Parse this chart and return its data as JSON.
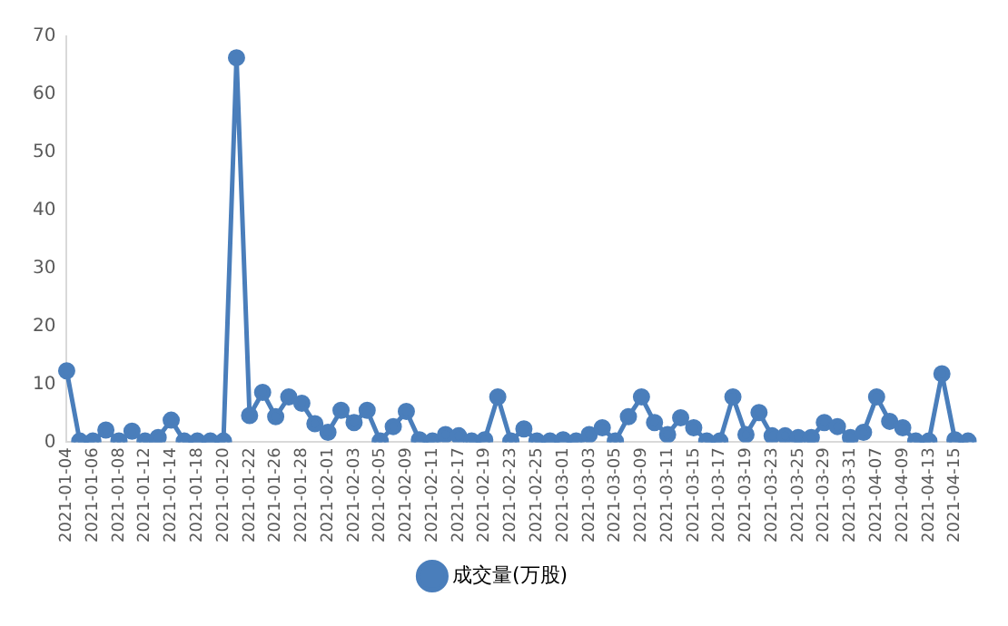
{
  "chart_data": {
    "type": "line",
    "categories": [
      "2021-01-04",
      null,
      "2021-01-06",
      null,
      "2021-01-08",
      null,
      "2021-01-12",
      null,
      "2021-01-14",
      null,
      "2021-01-18",
      null,
      "2021-01-20",
      null,
      "2021-01-22",
      null,
      "2021-01-26",
      null,
      "2021-01-28",
      null,
      "2021-02-01",
      null,
      "2021-02-03",
      null,
      "2021-02-05",
      null,
      "2021-02-09",
      null,
      "2021-02-11",
      null,
      "2021-02-17",
      null,
      "2021-02-19",
      null,
      "2021-02-23",
      null,
      "2021-02-25",
      null,
      "2021-03-01",
      null,
      "2021-03-03",
      null,
      "2021-03-05",
      null,
      "2021-03-09",
      null,
      "2021-03-11",
      null,
      "2021-03-15",
      null,
      "2021-03-17",
      null,
      "2021-03-19",
      null,
      "2021-03-23",
      null,
      "2021-03-25",
      null,
      "2021-03-29",
      null,
      "2021-03-31",
      null,
      "2021-04-07",
      null,
      "2021-04-09",
      null,
      "2021-04-13",
      null,
      "2021-04-15",
      null
    ],
    "series": [
      {
        "name": "成交量(万股)",
        "color": "#4a7ebb",
        "values": [
          12.3,
          0.2,
          0.2,
          2.1,
          0.2,
          1.9,
          0.2,
          0.8,
          3.8,
          0.2,
          0.2,
          0.2,
          0.2,
          66.3,
          4.6,
          8.6,
          4.4,
          7.8,
          6.7,
          3.2,
          1.7,
          5.5,
          3.4,
          5.5,
          0.2,
          2.7,
          5.3,
          0.4,
          0.2,
          1.3,
          1.1,
          0.2,
          0.4,
          7.8,
          0.2,
          2.3,
          0.2,
          0.2,
          0.4,
          0.2,
          1.3,
          2.5,
          0.2,
          4.4,
          7.8,
          3.4,
          1.3,
          4.2,
          2.5,
          0.2,
          0.2,
          7.8,
          1.3,
          5.1,
          1.1,
          1.1,
          0.8,
          0.8,
          3.4,
          2.7,
          0.8,
          1.7,
          7.8,
          3.6,
          2.5,
          0.2,
          0.2,
          11.8,
          0.4,
          0.2
        ]
      }
    ],
    "ylim": [
      0,
      70
    ],
    "yticks": [
      0,
      10,
      20,
      30,
      40,
      50,
      60,
      70
    ],
    "grid": false,
    "legend": "bottom",
    "marker": "circle",
    "line_style": "solid"
  }
}
